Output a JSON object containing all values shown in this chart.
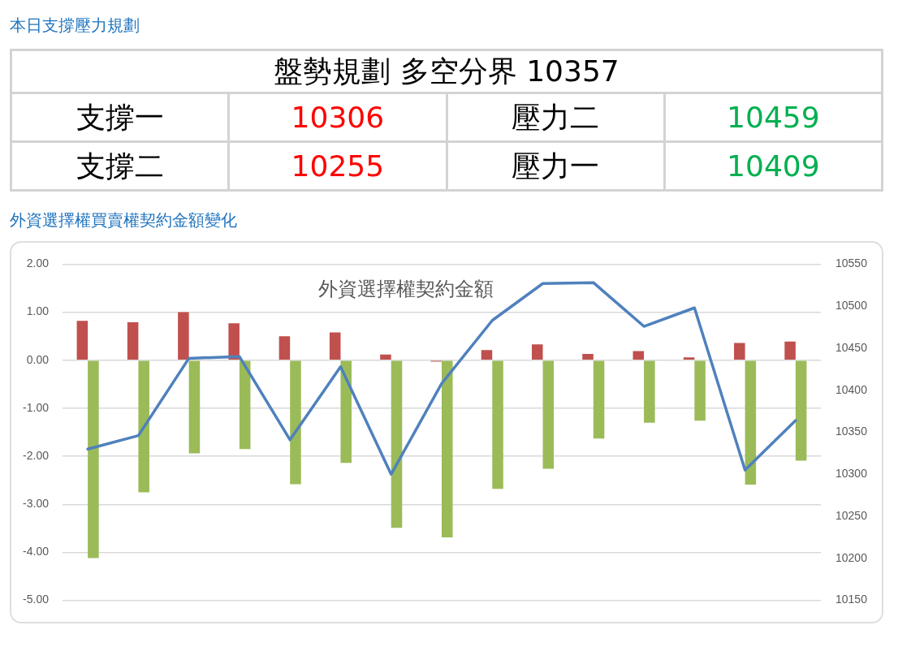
{
  "chart_data": [
    {
      "type": "other",
      "title": "本日支撐壓力規劃",
      "annotations": [
        "盤勢規劃 多空分界 10357",
        "支撐一",
        "10306",
        "壓力二",
        "10459",
        "支撐二",
        "10255",
        "壓力一",
        "10409"
      ]
    },
    {
      "type": "bar",
      "title": "外資選擇權買賣權契約金額變化",
      "subtitle": "外資選擇權契約金額",
      "categories": [
        null,
        null,
        null,
        null,
        null,
        null,
        null,
        null,
        null,
        null,
        null,
        null,
        null,
        null,
        null
      ],
      "series": [
        {
          "color": "#c0504d",
          "values": [
            0.82,
            0.79,
            1.0,
            0.77,
            0.5,
            0.58,
            0.12,
            -0.03,
            0.21,
            0.33,
            0.13,
            0.19,
            0.06,
            0.36,
            0.39
          ]
        },
        {
          "color": "#9bbb59",
          "values": [
            -4.12,
            -2.75,
            -1.94,
            -1.85,
            -2.58,
            -2.14,
            -3.49,
            -3.69,
            -2.68,
            -2.26,
            -1.63,
            -1.3,
            -1.26,
            -2.59,
            -2.09
          ]
        },
        {
          "type": "line",
          "axis": "y2",
          "color": "#4f81bd",
          "values": [
            10330,
            10346,
            10438,
            10440,
            10341,
            10428,
            10300,
            10408,
            10483,
            10527,
            10528,
            10476,
            10498,
            10305,
            10364
          ]
        }
      ],
      "ylim": [
        -5,
        2
      ],
      "yticks": [
        {
          "value": 2,
          "label": "2.00"
        },
        {
          "value": 1,
          "label": "1.00"
        },
        {
          "value": 0,
          "label": "0.00"
        },
        {
          "value": -1,
          "label": "-1.00"
        },
        {
          "value": -2,
          "label": "-2.00"
        },
        {
          "value": -3,
          "label": "-3.00"
        },
        {
          "value": -4,
          "label": "-4.00"
        },
        {
          "value": -5,
          "label": "-5.00"
        }
      ],
      "y2lim": [
        10150,
        10550
      ],
      "y2ticks": [
        10150,
        10200,
        10250,
        10300,
        10350,
        10400,
        10450,
        10500,
        10550
      ],
      "grid": "y"
    }
  ]
}
